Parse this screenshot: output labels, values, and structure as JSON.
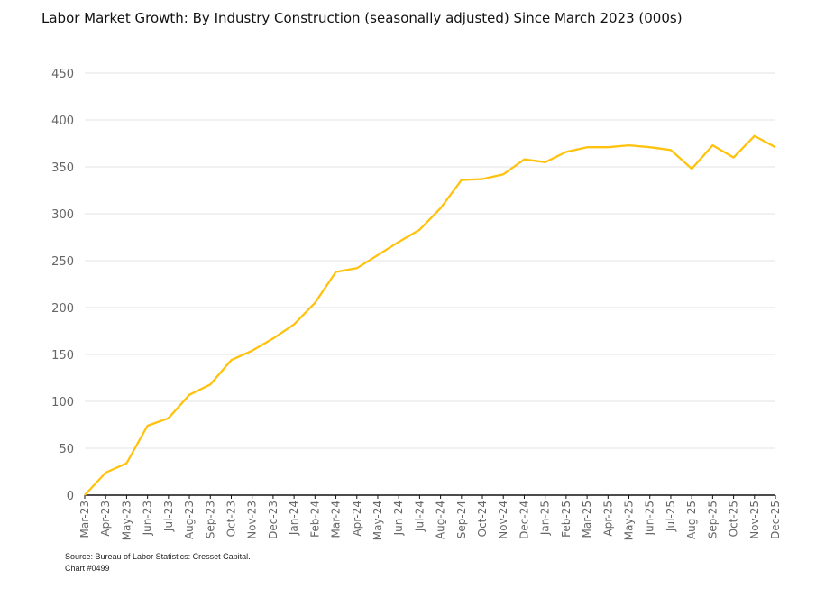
{
  "chart_data": {
    "type": "line",
    "title": "Labor Market Growth:  By Industry Construction (seasonally adjusted) Since March 2023 (000s)",
    "xlabel": "",
    "ylabel": "",
    "ylim": [
      0,
      450
    ],
    "yticks": [
      0,
      50,
      100,
      150,
      200,
      250,
      300,
      350,
      400,
      450
    ],
    "grid": true,
    "line_color": "#FFC20E",
    "categories": [
      "Mar-23",
      "Apr-23",
      "May-23",
      "Jun-23",
      "Jul-23",
      "Aug-23",
      "Sep-23",
      "Oct-23",
      "Nov-23",
      "Dec-23",
      "Jan-24",
      "Feb-24",
      "Mar-24",
      "Apr-24",
      "May-24",
      "Jun-24",
      "Jul-24",
      "Aug-24",
      "Sep-24",
      "Oct-24",
      "Nov-24",
      "Dec-24",
      "Jan-25",
      "Feb-25",
      "Mar-25",
      "Apr-25",
      "May-25",
      "Jun-25",
      "Jul-25",
      "Aug-25",
      "Sep-25",
      "Oct-25",
      "Nov-25",
      "Dec-25"
    ],
    "values": [
      0,
      24,
      34,
      74,
      82,
      107,
      118,
      144,
      154,
      167,
      182,
      205,
      238,
      242,
      256,
      270,
      283,
      306,
      336,
      337,
      342,
      358,
      355,
      366,
      371,
      371,
      373,
      371,
      368,
      348,
      373,
      360,
      383,
      371
    ]
  },
  "source": {
    "line1": "Source: Bureau of Labor Statistics: Cresset Capital.",
    "line2": "Chart #0499"
  }
}
